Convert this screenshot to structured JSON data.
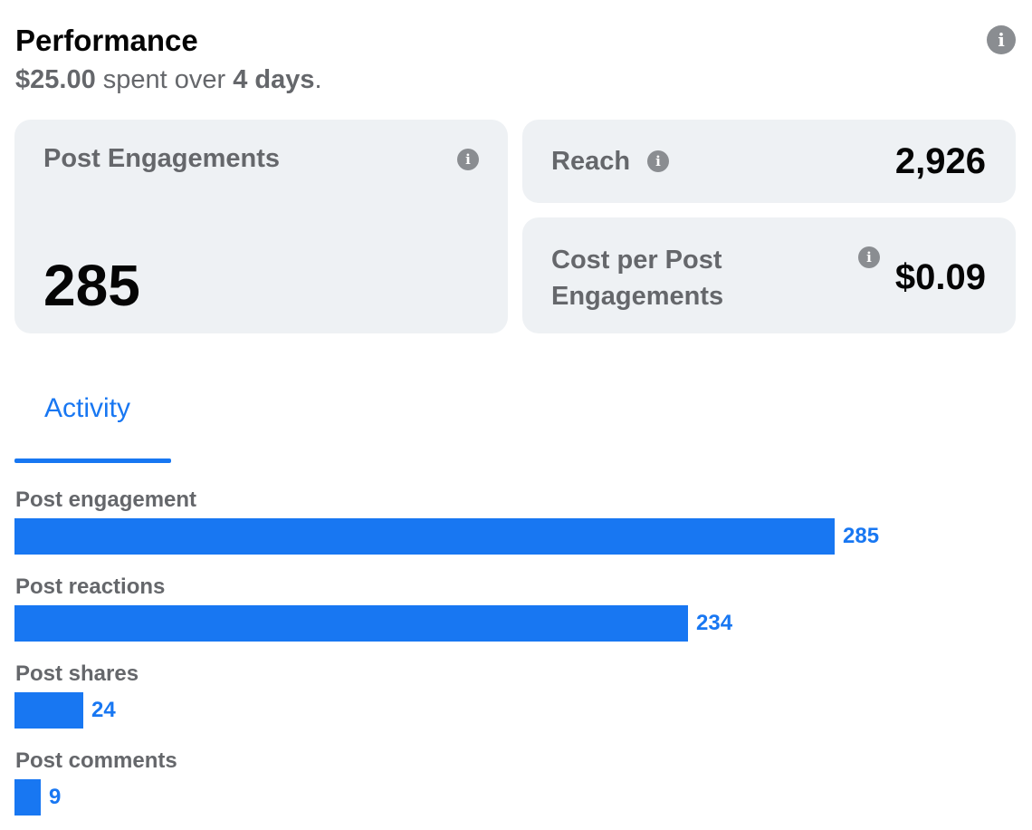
{
  "header": {
    "title": "Performance",
    "spent_amount": "$25.00",
    "spent_middle": " spent over ",
    "spent_days": "4 days",
    "spent_end": "."
  },
  "cards": {
    "post_engagements": {
      "label": "Post Engagements",
      "value": "285"
    },
    "reach": {
      "label": "Reach",
      "value": "2,926"
    },
    "cost_per_post_engagements": {
      "label_line1": "Cost per Post",
      "label_line2": "Engagements",
      "value": "$0.09"
    }
  },
  "tabs": {
    "activity": "Activity"
  },
  "chart_data": {
    "type": "bar",
    "orientation": "horizontal",
    "categories": [
      "Post engagement",
      "Post reactions",
      "Post shares",
      "Post comments"
    ],
    "values": [
      285,
      234,
      24,
      9
    ],
    "color": "#1877f2"
  },
  "colors": {
    "accent": "#1877f2",
    "card_bg": "#eef1f4",
    "muted_text": "#65676b"
  },
  "icons": {
    "info": "info-icon"
  }
}
